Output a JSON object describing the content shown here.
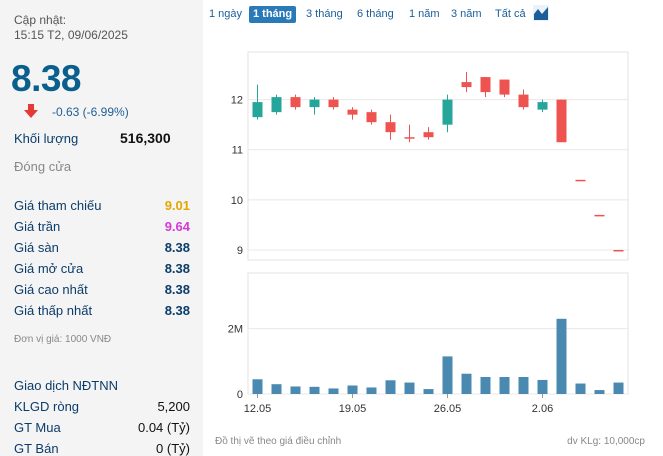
{
  "header": {
    "update_label": "Cập nhật:",
    "update_time": "15:15 T2, 09/06/2025",
    "price": "8.38",
    "change": "-0.63 (-6.99%)"
  },
  "stats": {
    "volume_label": "Khối lượng",
    "volume_value": "516,300",
    "close_label": "Đóng cửa",
    "rows": [
      {
        "label": "Giá tham chiếu",
        "value": "9.01"
      },
      {
        "label": "Giá trần",
        "value": "9.64"
      },
      {
        "label": "Giá sàn",
        "value": "8.38"
      },
      {
        "label": "Giá mở cửa",
        "value": "8.38"
      },
      {
        "label": "Giá cao nhất",
        "value": "8.38"
      },
      {
        "label": "Giá thấp nhất",
        "value": "8.38"
      }
    ],
    "unit_note": "Đơn vị giá: 1000 VNĐ"
  },
  "foreign": {
    "title": "Giao dịch NĐTNN",
    "rows": [
      {
        "label": "KLGD ròng",
        "value": "5,200"
      },
      {
        "label": "GT Mua",
        "value": "0.04 (Tỷ)"
      },
      {
        "label": "GT Bán",
        "value": "0 (Tỷ)"
      }
    ]
  },
  "ranges": [
    "1 ngày",
    "1 tháng",
    "3 tháng",
    "6 tháng",
    "1 năm",
    "3 năm",
    "Tất cả"
  ],
  "active_range": "1 tháng",
  "footer": {
    "note": "Đồ thị vẽ theo giá điều chỉnh",
    "unit": "dv KLg: 10,000cp"
  },
  "colors": {
    "up": "#26a69a",
    "down": "#ef5350",
    "volume": "#4a8ab0",
    "price_blue": "#0b5f8c"
  },
  "chart_data": {
    "type": "candlestick",
    "price_ticks": [
      9,
      10,
      11,
      12
    ],
    "price_range": [
      8.8,
      12.95
    ],
    "volume_ticks": [
      {
        "value": 0,
        "label": "0"
      },
      {
        "value": 2000000,
        "label": "2M"
      }
    ],
    "volume_range": [
      0,
      3700000
    ],
    "x_labels": [
      {
        "index": 0,
        "label": "12.05"
      },
      {
        "index": 5,
        "label": "19.05"
      },
      {
        "index": 10,
        "label": "26.05"
      },
      {
        "index": 15,
        "label": "2.06"
      }
    ],
    "candles": [
      {
        "open": 11.65,
        "close": 11.95,
        "high": 12.3,
        "low": 11.6
      },
      {
        "open": 11.75,
        "close": 12.05,
        "high": 12.1,
        "low": 11.7
      },
      {
        "open": 12.05,
        "close": 11.85,
        "high": 12.1,
        "low": 11.8
      },
      {
        "open": 11.85,
        "close": 12.0,
        "high": 12.05,
        "low": 11.7
      },
      {
        "open": 12.0,
        "close": 11.85,
        "high": 12.05,
        "low": 11.8
      },
      {
        "open": 11.8,
        "close": 11.7,
        "high": 11.85,
        "low": 11.6
      },
      {
        "open": 11.75,
        "close": 11.55,
        "high": 11.8,
        "low": 11.5
      },
      {
        "open": 11.55,
        "close": 11.35,
        "high": 11.7,
        "low": 11.2
      },
      {
        "open": 11.25,
        "close": 11.22,
        "high": 11.5,
        "low": 11.15
      },
      {
        "open": 11.35,
        "close": 11.25,
        "high": 11.45,
        "low": 11.2
      },
      {
        "open": 11.5,
        "close": 12.0,
        "high": 12.1,
        "low": 11.35
      },
      {
        "open": 12.35,
        "close": 12.25,
        "high": 12.55,
        "low": 12.15
      },
      {
        "open": 12.45,
        "close": 12.15,
        "high": 12.45,
        "low": 12.05
      },
      {
        "open": 12.4,
        "close": 12.1,
        "high": 12.4,
        "low": 12.05
      },
      {
        "open": 12.1,
        "close": 11.85,
        "high": 12.2,
        "low": 11.8
      },
      {
        "open": 11.8,
        "close": 11.95,
        "high": 12.0,
        "low": 11.75
      },
      {
        "open": 12.0,
        "close": 11.15,
        "high": 12.0,
        "low": 11.15
      },
      {
        "open": 10.4,
        "close": 10.4,
        "high": 10.4,
        "low": 10.4
      },
      {
        "open": 9.7,
        "close": 9.7,
        "high": 9.7,
        "low": 9.7
      },
      {
        "open": 9.0,
        "close": 9.0,
        "high": 9.0,
        "low": 9.0
      }
    ],
    "volumes": [
      450000,
      300000,
      230000,
      220000,
      170000,
      260000,
      200000,
      420000,
      350000,
      150000,
      1150000,
      620000,
      520000,
      520000,
      520000,
      430000,
      2300000,
      320000,
      120000,
      350000
    ]
  }
}
